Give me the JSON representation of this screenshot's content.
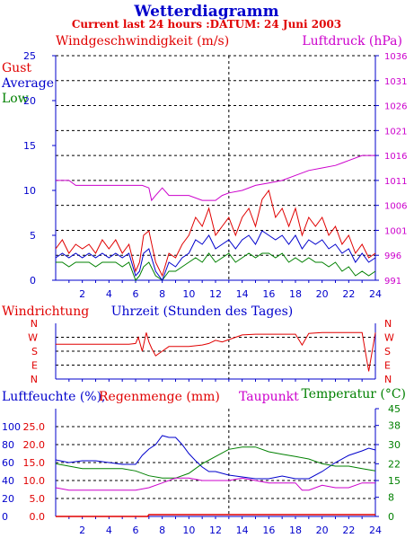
{
  "title": "Wetterdiagramm",
  "subtitle": "Current last 24 hours :DATUM: 24 Juni 2003",
  "colors": {
    "gust": "#e00000",
    "average": "#0000cc",
    "low": "#008000",
    "pressure": "#cc00cc",
    "axis": "#0000cc",
    "dewpoint": "#cc00cc",
    "temperature": "#008000",
    "humidity": "#0000cc",
    "rain": "#e00000",
    "grid": "#000000"
  },
  "chart_data": [
    {
      "type": "line",
      "title": "",
      "label_left": "Windgeschwindigkeit (m/s)",
      "label_right": "Luftdruck (hPa)",
      "legend": [
        "Gust",
        "Average",
        "Low"
      ],
      "legend_placement": "top-left",
      "xlabel": "",
      "xlim": [
        0,
        24
      ],
      "x_ticks": [
        2,
        4,
        6,
        8,
        10,
        12,
        14,
        16,
        18,
        20,
        22,
        24
      ],
      "ylim_left": [
        0,
        25
      ],
      "y_ticks_left": [
        0,
        5,
        10,
        15,
        20,
        25
      ],
      "ylim_right": [
        991,
        1036
      ],
      "y_ticks_right": [
        991,
        996,
        1001,
        1006,
        1011,
        1016,
        1021,
        1026,
        1031,
        1036
      ],
      "grid": true,
      "series": [
        {
          "name": "Gust",
          "axis": "left",
          "x": [
            0,
            0.5,
            1,
            1.5,
            2,
            2.5,
            3,
            3.5,
            4,
            4.5,
            5,
            5.5,
            6,
            6.3,
            6.6,
            7,
            7.5,
            8,
            8.5,
            9,
            9.5,
            10,
            10.5,
            11,
            11.5,
            12,
            12.5,
            13,
            13.5,
            14,
            14.5,
            15,
            15.5,
            16,
            16.5,
            17,
            17.5,
            18,
            18.5,
            19,
            19.5,
            20,
            20.5,
            21,
            21.5,
            22,
            22.5,
            23,
            23.5,
            24
          ],
          "values": [
            3.5,
            4.5,
            3,
            4,
            3.5,
            4,
            3,
            4.5,
            3.5,
            4.5,
            3,
            4,
            1,
            2,
            5,
            5.5,
            2,
            0.5,
            3,
            2.5,
            4,
            5,
            7,
            6,
            8,
            5,
            6,
            7,
            5,
            7,
            8,
            6,
            9,
            10,
            7,
            8,
            6,
            8,
            5,
            7,
            6,
            7,
            5,
            6,
            4,
            5,
            3,
            4,
            2.5,
            3
          ]
        },
        {
          "name": "Average",
          "axis": "left",
          "x": [
            0,
            0.5,
            1,
            1.5,
            2,
            2.5,
            3,
            3.5,
            4,
            4.5,
            5,
            5.5,
            6,
            6.3,
            6.6,
            7,
            7.5,
            8,
            8.5,
            9,
            9.5,
            10,
            10.5,
            11,
            11.5,
            12,
            12.5,
            13,
            13.5,
            14,
            14.5,
            15,
            15.5,
            16,
            16.5,
            17,
            17.5,
            18,
            18.5,
            19,
            19.5,
            20,
            20.5,
            21,
            21.5,
            22,
            22.5,
            23,
            23.5,
            24
          ],
          "values": [
            2.5,
            3,
            2.5,
            3,
            2.5,
            3,
            2.5,
            3,
            2.5,
            3,
            2.5,
            3,
            0.5,
            1,
            3,
            3.5,
            1,
            0,
            2,
            1.5,
            2.5,
            3,
            4.5,
            4,
            5,
            3.5,
            4,
            4.5,
            3.5,
            4.5,
            5,
            4,
            5.5,
            5,
            4.5,
            5,
            4,
            5,
            3.5,
            4.5,
            4,
            4.5,
            3.5,
            4,
            3,
            3.5,
            2,
            3,
            2,
            2.5
          ]
        },
        {
          "name": "Low",
          "axis": "left",
          "x": [
            0,
            0.5,
            1,
            1.5,
            2,
            2.5,
            3,
            3.5,
            4,
            4.5,
            5,
            5.5,
            6,
            6.3,
            6.6,
            7,
            7.5,
            8,
            8.5,
            9,
            9.5,
            10,
            10.5,
            11,
            11.5,
            12,
            12.5,
            13,
            13.5,
            14,
            14.5,
            15,
            15.5,
            16,
            16.5,
            17,
            17.5,
            18,
            18.5,
            19,
            19.5,
            20,
            20.5,
            21,
            21.5,
            22,
            22.5,
            23,
            23.5,
            24
          ],
          "values": [
            2,
            2,
            1.5,
            2,
            2,
            2,
            1.5,
            2,
            2,
            2,
            1.5,
            2,
            0,
            0.5,
            1.5,
            2,
            0.5,
            0,
            1,
            1,
            1.5,
            2,
            2.5,
            2,
            3,
            2,
            2.5,
            3,
            2,
            2.5,
            3,
            2.5,
            3,
            3,
            2.5,
            3,
            2,
            2.5,
            2,
            2.5,
            2,
            2,
            1.5,
            2,
            1,
            1.5,
            0.5,
            1,
            0.5,
            1
          ]
        },
        {
          "name": "Luftdruck",
          "axis": "right",
          "x": [
            0,
            1,
            1.5,
            2,
            3,
            4,
            5,
            6,
            6.5,
            7,
            7.2,
            7.5,
            8,
            8.5,
            9,
            9.5,
            10,
            11,
            12,
            12.5,
            13,
            14,
            15,
            16,
            17,
            18,
            19,
            20,
            21,
            22,
            23,
            24
          ],
          "values": [
            1011,
            1011,
            1010,
            1010,
            1010,
            1010,
            1010,
            1010,
            1010,
            1009.5,
            1007,
            1008,
            1009.5,
            1008,
            1008,
            1008,
            1008,
            1007,
            1007,
            1008,
            1008.5,
            1009,
            1010,
            1010.5,
            1011,
            1012,
            1013,
            1013.5,
            1014,
            1015,
            1016,
            1016
          ]
        }
      ]
    },
    {
      "type": "line",
      "title": "",
      "label_left": "Windrichtung",
      "label_center": "Uhrzeit (Stunden des Tages)",
      "xlim": [
        0,
        24
      ],
      "y_ticks": [
        "N",
        "W",
        "S",
        "E",
        "N"
      ],
      "series": [
        {
          "name": "Windrichtung",
          "x": [
            0,
            1,
            2,
            3,
            4,
            5,
            5.5,
            6,
            6.2,
            6.5,
            6.8,
            7,
            7.2,
            7.5,
            8,
            8.5,
            9,
            10,
            11,
            11.5,
            12,
            12.5,
            13,
            13.5,
            14,
            15,
            16,
            17,
            18,
            18.5,
            19,
            20,
            21,
            22,
            23,
            23.5,
            24
          ],
          "values": [
            225,
            225,
            225,
            225,
            225,
            225,
            225,
            230,
            270,
            180,
            300,
            240,
            200,
            150,
            180,
            210,
            210,
            210,
            220,
            230,
            250,
            240,
            255,
            270,
            285,
            290,
            290,
            290,
            290,
            220,
            295,
            300,
            300,
            300,
            300,
            50,
            300
          ]
        }
      ]
    },
    {
      "type": "line",
      "title": "",
      "label_left": "Luftfeuchte (%),",
      "label_left2": "Regenmenge (mm)",
      "label_right": "Temperatur (°C)",
      "label_mid": "Taupunkt",
      "xlim": [
        0,
        24
      ],
      "humidity_ticks": [
        0,
        20,
        40,
        60,
        80,
        100
      ],
      "rain_ticks": [
        "0.0",
        "5.0",
        "10.0",
        "15.0",
        "20.0",
        "25.0"
      ],
      "temp_ticks": [
        0,
        8,
        15,
        22,
        30,
        38,
        45
      ],
      "grid": true,
      "series": [
        {
          "name": "Luftfeuchte",
          "axis": "humidity",
          "x": [
            0,
            1,
            2,
            3,
            4,
            5,
            6,
            6.5,
            7,
            7.5,
            8,
            8.5,
            9,
            9.5,
            10,
            10.5,
            11,
            11.5,
            12,
            13,
            14,
            15,
            16,
            17,
            18,
            19,
            20,
            21,
            22,
            23,
            23.5,
            24
          ],
          "values": [
            63,
            60,
            62,
            62,
            60,
            58,
            58,
            68,
            75,
            80,
            90,
            88,
            88,
            80,
            70,
            62,
            55,
            50,
            50,
            46,
            44,
            42,
            42,
            45,
            42,
            42,
            50,
            60,
            68,
            73,
            76,
            74
          ]
        },
        {
          "name": "Temperatur",
          "axis": "temperature",
          "x": [
            0,
            1,
            2,
            3,
            4,
            5,
            6,
            7,
            8,
            9,
            10,
            11,
            12,
            13,
            14,
            15,
            16,
            17,
            18,
            19,
            20,
            21,
            22,
            23,
            24
          ],
          "values": [
            22,
            21,
            20,
            20,
            20,
            20,
            19,
            17,
            16,
            16,
            18,
            22,
            25,
            28,
            29,
            29,
            27,
            26,
            25,
            24,
            22,
            21,
            21,
            20,
            19
          ]
        },
        {
          "name": "Taupunkt",
          "axis": "temperature",
          "x": [
            0,
            1,
            2,
            3,
            4,
            5,
            6,
            7,
            8,
            9,
            10,
            11,
            12,
            13,
            14,
            15,
            16,
            17,
            18,
            18.5,
            19,
            20,
            21,
            22,
            23,
            24
          ],
          "values": [
            12,
            11,
            11,
            11,
            11,
            11,
            11,
            12,
            14,
            16,
            16,
            15,
            15,
            15,
            16,
            15,
            14,
            14,
            14,
            11,
            11,
            13,
            12,
            12,
            14,
            14
          ]
        },
        {
          "name": "Regenmenge",
          "axis": "rain",
          "x": [
            0,
            6.9,
            7,
            24
          ],
          "values": [
            0,
            0,
            0.5,
            0.5
          ]
        }
      ]
    }
  ]
}
